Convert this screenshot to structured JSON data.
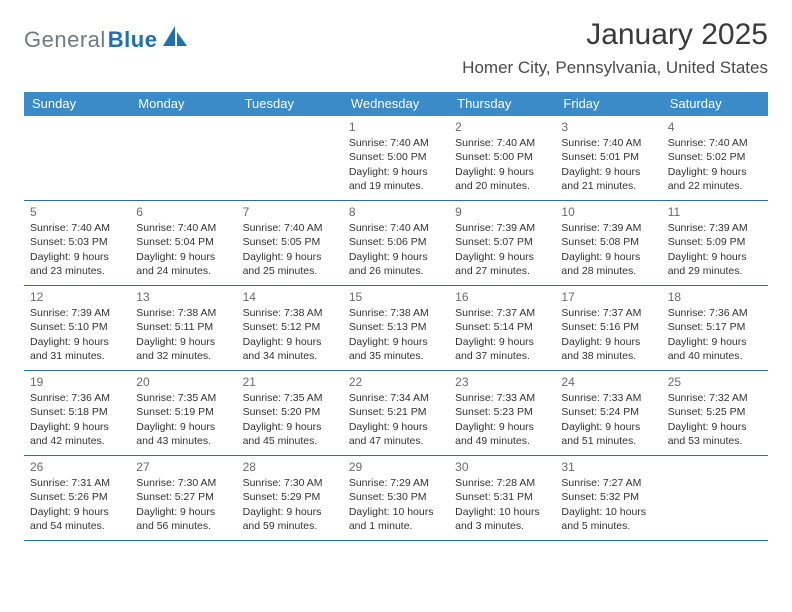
{
  "logo": {
    "text_gray": "General",
    "text_blue": "Blue",
    "gray_color": "#6f7b80",
    "blue_color": "#1f6fb2",
    "mark_color": "#1f6fb2"
  },
  "title": "January 2025",
  "location": "Homer City, Pennsylvania, United States",
  "colors": {
    "header_bg": "#3b8bc8",
    "header_text": "#ffffff",
    "week_border": "#2f6da8",
    "daynum_color": "#6a6a6a",
    "body_text": "#333333",
    "page_bg": "#ffffff"
  },
  "day_labels": [
    "Sunday",
    "Monday",
    "Tuesday",
    "Wednesday",
    "Thursday",
    "Friday",
    "Saturday"
  ],
  "weeks": [
    [
      {
        "empty": true
      },
      {
        "empty": true
      },
      {
        "empty": true
      },
      {
        "day": "1",
        "sunrise": "Sunrise: 7:40 AM",
        "sunset": "Sunset: 5:00 PM",
        "daylight": "Daylight: 9 hours and 19 minutes."
      },
      {
        "day": "2",
        "sunrise": "Sunrise: 7:40 AM",
        "sunset": "Sunset: 5:00 PM",
        "daylight": "Daylight: 9 hours and 20 minutes."
      },
      {
        "day": "3",
        "sunrise": "Sunrise: 7:40 AM",
        "sunset": "Sunset: 5:01 PM",
        "daylight": "Daylight: 9 hours and 21 minutes."
      },
      {
        "day": "4",
        "sunrise": "Sunrise: 7:40 AM",
        "sunset": "Sunset: 5:02 PM",
        "daylight": "Daylight: 9 hours and 22 minutes."
      }
    ],
    [
      {
        "day": "5",
        "sunrise": "Sunrise: 7:40 AM",
        "sunset": "Sunset: 5:03 PM",
        "daylight": "Daylight: 9 hours and 23 minutes."
      },
      {
        "day": "6",
        "sunrise": "Sunrise: 7:40 AM",
        "sunset": "Sunset: 5:04 PM",
        "daylight": "Daylight: 9 hours and 24 minutes."
      },
      {
        "day": "7",
        "sunrise": "Sunrise: 7:40 AM",
        "sunset": "Sunset: 5:05 PM",
        "daylight": "Daylight: 9 hours and 25 minutes."
      },
      {
        "day": "8",
        "sunrise": "Sunrise: 7:40 AM",
        "sunset": "Sunset: 5:06 PM",
        "daylight": "Daylight: 9 hours and 26 minutes."
      },
      {
        "day": "9",
        "sunrise": "Sunrise: 7:39 AM",
        "sunset": "Sunset: 5:07 PM",
        "daylight": "Daylight: 9 hours and 27 minutes."
      },
      {
        "day": "10",
        "sunrise": "Sunrise: 7:39 AM",
        "sunset": "Sunset: 5:08 PM",
        "daylight": "Daylight: 9 hours and 28 minutes."
      },
      {
        "day": "11",
        "sunrise": "Sunrise: 7:39 AM",
        "sunset": "Sunset: 5:09 PM",
        "daylight": "Daylight: 9 hours and 29 minutes."
      }
    ],
    [
      {
        "day": "12",
        "sunrise": "Sunrise: 7:39 AM",
        "sunset": "Sunset: 5:10 PM",
        "daylight": "Daylight: 9 hours and 31 minutes."
      },
      {
        "day": "13",
        "sunrise": "Sunrise: 7:38 AM",
        "sunset": "Sunset: 5:11 PM",
        "daylight": "Daylight: 9 hours and 32 minutes."
      },
      {
        "day": "14",
        "sunrise": "Sunrise: 7:38 AM",
        "sunset": "Sunset: 5:12 PM",
        "daylight": "Daylight: 9 hours and 34 minutes."
      },
      {
        "day": "15",
        "sunrise": "Sunrise: 7:38 AM",
        "sunset": "Sunset: 5:13 PM",
        "daylight": "Daylight: 9 hours and 35 minutes."
      },
      {
        "day": "16",
        "sunrise": "Sunrise: 7:37 AM",
        "sunset": "Sunset: 5:14 PM",
        "daylight": "Daylight: 9 hours and 37 minutes."
      },
      {
        "day": "17",
        "sunrise": "Sunrise: 7:37 AM",
        "sunset": "Sunset: 5:16 PM",
        "daylight": "Daylight: 9 hours and 38 minutes."
      },
      {
        "day": "18",
        "sunrise": "Sunrise: 7:36 AM",
        "sunset": "Sunset: 5:17 PM",
        "daylight": "Daylight: 9 hours and 40 minutes."
      }
    ],
    [
      {
        "day": "19",
        "sunrise": "Sunrise: 7:36 AM",
        "sunset": "Sunset: 5:18 PM",
        "daylight": "Daylight: 9 hours and 42 minutes."
      },
      {
        "day": "20",
        "sunrise": "Sunrise: 7:35 AM",
        "sunset": "Sunset: 5:19 PM",
        "daylight": "Daylight: 9 hours and 43 minutes."
      },
      {
        "day": "21",
        "sunrise": "Sunrise: 7:35 AM",
        "sunset": "Sunset: 5:20 PM",
        "daylight": "Daylight: 9 hours and 45 minutes."
      },
      {
        "day": "22",
        "sunrise": "Sunrise: 7:34 AM",
        "sunset": "Sunset: 5:21 PM",
        "daylight": "Daylight: 9 hours and 47 minutes."
      },
      {
        "day": "23",
        "sunrise": "Sunrise: 7:33 AM",
        "sunset": "Sunset: 5:23 PM",
        "daylight": "Daylight: 9 hours and 49 minutes."
      },
      {
        "day": "24",
        "sunrise": "Sunrise: 7:33 AM",
        "sunset": "Sunset: 5:24 PM",
        "daylight": "Daylight: 9 hours and 51 minutes."
      },
      {
        "day": "25",
        "sunrise": "Sunrise: 7:32 AM",
        "sunset": "Sunset: 5:25 PM",
        "daylight": "Daylight: 9 hours and 53 minutes."
      }
    ],
    [
      {
        "day": "26",
        "sunrise": "Sunrise: 7:31 AM",
        "sunset": "Sunset: 5:26 PM",
        "daylight": "Daylight: 9 hours and 54 minutes."
      },
      {
        "day": "27",
        "sunrise": "Sunrise: 7:30 AM",
        "sunset": "Sunset: 5:27 PM",
        "daylight": "Daylight: 9 hours and 56 minutes."
      },
      {
        "day": "28",
        "sunrise": "Sunrise: 7:30 AM",
        "sunset": "Sunset: 5:29 PM",
        "daylight": "Daylight: 9 hours and 59 minutes."
      },
      {
        "day": "29",
        "sunrise": "Sunrise: 7:29 AM",
        "sunset": "Sunset: 5:30 PM",
        "daylight": "Daylight: 10 hours and 1 minute."
      },
      {
        "day": "30",
        "sunrise": "Sunrise: 7:28 AM",
        "sunset": "Sunset: 5:31 PM",
        "daylight": "Daylight: 10 hours and 3 minutes."
      },
      {
        "day": "31",
        "sunrise": "Sunrise: 7:27 AM",
        "sunset": "Sunset: 5:32 PM",
        "daylight": "Daylight: 10 hours and 5 minutes."
      },
      {
        "empty": true
      }
    ]
  ]
}
